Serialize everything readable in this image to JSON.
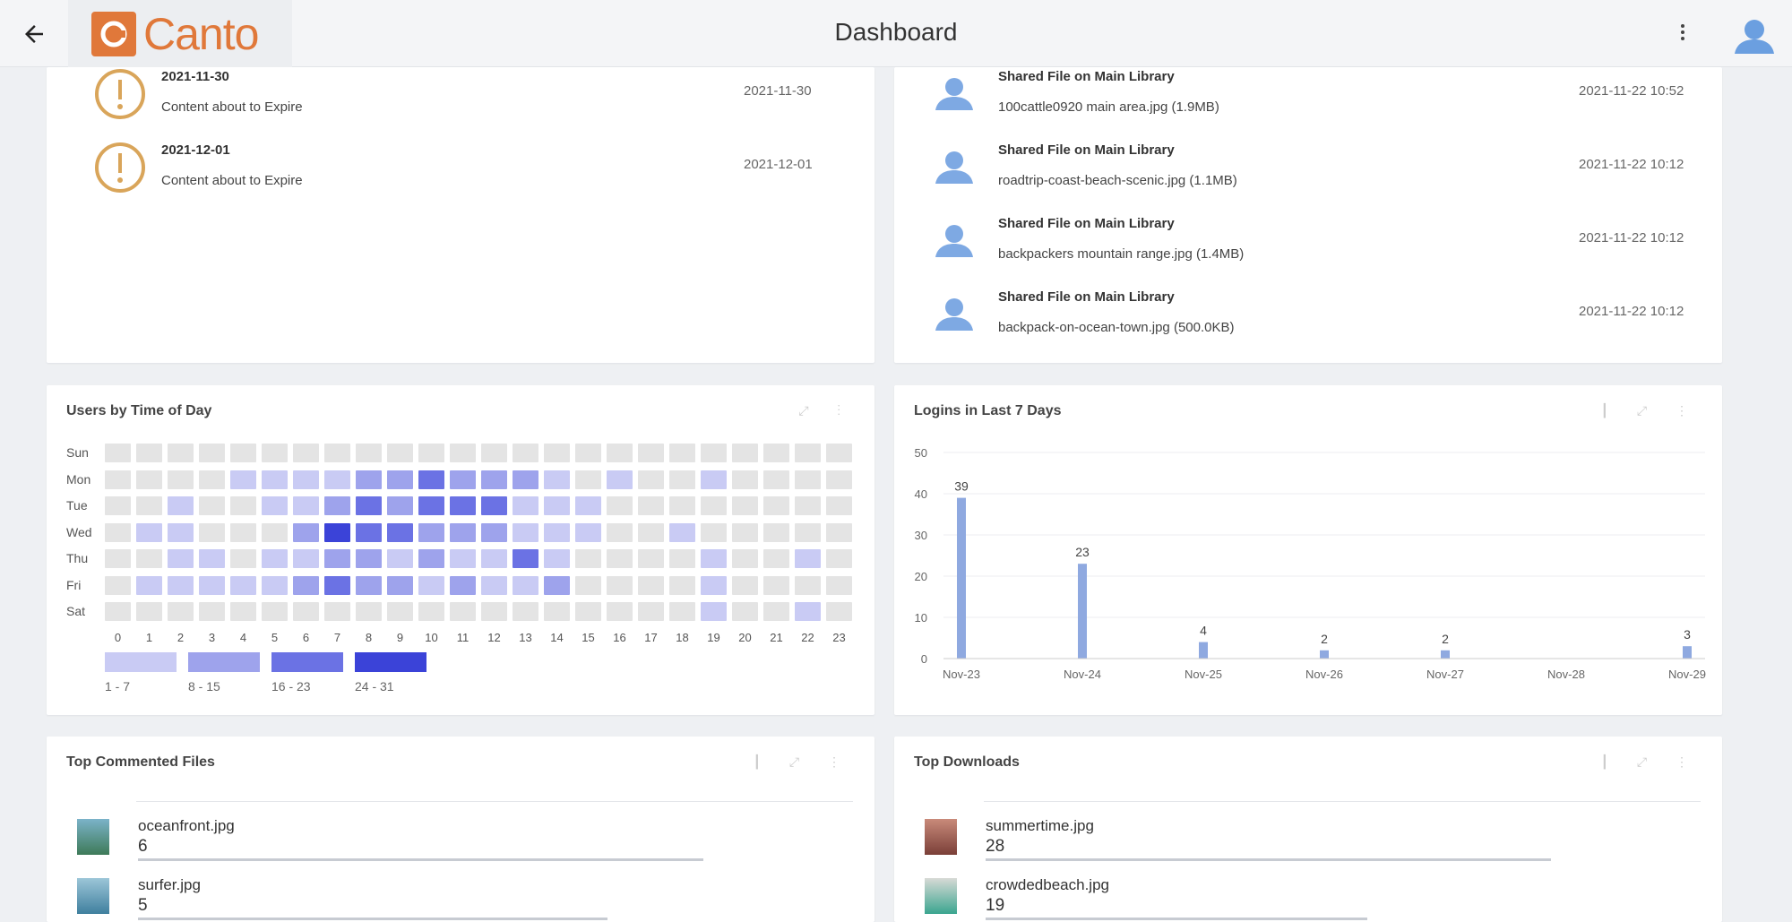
{
  "header": {
    "title": "Dashboard",
    "brand": "Canto",
    "back_icon": "arrow-left-icon",
    "menu_icon": "kebab-icon",
    "avatar_icon": "user-icon",
    "brand_color": "#e0783a"
  },
  "alerts": {
    "items": [
      {
        "title": "2021-11-30",
        "subtitle": "Content about to Expire",
        "date": "2021-11-30"
      },
      {
        "title": "2021-12-01",
        "subtitle": "Content about to Expire",
        "date": "2021-12-01"
      }
    ]
  },
  "activity": {
    "items": [
      {
        "title": "Shared File on Main Library",
        "subtitle": "100cattle0920 main area.jpg (1.9MB)",
        "date": "2021-11-22 10:52"
      },
      {
        "title": "Shared File on Main Library",
        "subtitle": "roadtrip-coast-beach-scenic.jpg (1.1MB)",
        "date": "2021-11-22 10:12"
      },
      {
        "title": "Shared File on Main Library",
        "subtitle": "backpackers mountain range.jpg (1.4MB)",
        "date": "2021-11-22 10:12"
      },
      {
        "title": "Shared File on Main Library",
        "subtitle": "backpack-on-ocean-town.jpg (500.0KB)",
        "date": "2021-11-22 10:12"
      }
    ]
  },
  "heatmap": {
    "title": "Users by Time of Day",
    "days": [
      "Sun",
      "Mon",
      "Tue",
      "Wed",
      "Thu",
      "Fri",
      "Sat"
    ],
    "hours": [
      "0",
      "1",
      "2",
      "3",
      "4",
      "5",
      "6",
      "7",
      "8",
      "9",
      "10",
      "11",
      "12",
      "13",
      "14",
      "15",
      "16",
      "17",
      "18",
      "19",
      "20",
      "21",
      "22",
      "23"
    ],
    "levels": [
      [
        0,
        0,
        0,
        0,
        0,
        0,
        0,
        0,
        0,
        0,
        0,
        0,
        0,
        0,
        0,
        0,
        0,
        0,
        0,
        0,
        0,
        0,
        0,
        0
      ],
      [
        0,
        0,
        0,
        0,
        1,
        1,
        1,
        1,
        2,
        2,
        3,
        2,
        2,
        2,
        1,
        0,
        1,
        0,
        0,
        1,
        0,
        0,
        0,
        0
      ],
      [
        0,
        0,
        1,
        0,
        0,
        1,
        1,
        2,
        3,
        2,
        3,
        3,
        3,
        1,
        1,
        1,
        0,
        0,
        0,
        0,
        0,
        0,
        0,
        0
      ],
      [
        0,
        1,
        1,
        0,
        0,
        0,
        2,
        4,
        3,
        3,
        2,
        2,
        2,
        1,
        1,
        1,
        0,
        0,
        1,
        0,
        0,
        0,
        0,
        0
      ],
      [
        0,
        0,
        1,
        1,
        0,
        1,
        1,
        2,
        2,
        1,
        2,
        1,
        1,
        3,
        1,
        0,
        0,
        0,
        0,
        1,
        0,
        0,
        1,
        0
      ],
      [
        0,
        1,
        1,
        1,
        1,
        1,
        2,
        3,
        2,
        2,
        1,
        2,
        1,
        1,
        2,
        0,
        0,
        0,
        0,
        1,
        0,
        0,
        0,
        0
      ],
      [
        0,
        0,
        0,
        0,
        0,
        0,
        0,
        0,
        0,
        0,
        0,
        0,
        0,
        0,
        0,
        0,
        0,
        0,
        0,
        1,
        0,
        0,
        1,
        0
      ]
    ],
    "legend": [
      "1 - 7",
      "8 - 15",
      "16 - 23",
      "24 - 31"
    ],
    "colors": [
      "#e4e4e4",
      "#c9cbf4",
      "#9ea3ec",
      "#6b72e4",
      "#3b43d8"
    ]
  },
  "logins_chart": {
    "title": "Logins in Last 7 Days",
    "chart_data": {
      "type": "bar",
      "title": "Logins in Last 7 Days",
      "categories": [
        "Nov-23",
        "Nov-24",
        "Nov-25",
        "Nov-26",
        "Nov-27",
        "Nov-28",
        "Nov-29"
      ],
      "values": [
        39,
        23,
        4,
        2,
        2,
        0,
        3
      ],
      "ylim": [
        0,
        50
      ],
      "yticks": [
        "0",
        "10",
        "20",
        "30",
        "40",
        "50"
      ],
      "xlabel": "",
      "ylabel": "",
      "bar_color": "#8fa9e0"
    }
  },
  "top_commented": {
    "title": "Top Commented Files",
    "items": [
      {
        "name": "oceanfront.jpg",
        "count": "6",
        "ratio": 0.83
      },
      {
        "name": "surfer.jpg",
        "count": "5",
        "ratio": 0.69
      }
    ]
  },
  "top_downloads": {
    "title": "Top Downloads",
    "items": [
      {
        "name": "summertime.jpg",
        "count": "28",
        "ratio": 0.83
      },
      {
        "name": "crowdedbeach.jpg",
        "count": "19",
        "ratio": 0.56
      }
    ]
  }
}
